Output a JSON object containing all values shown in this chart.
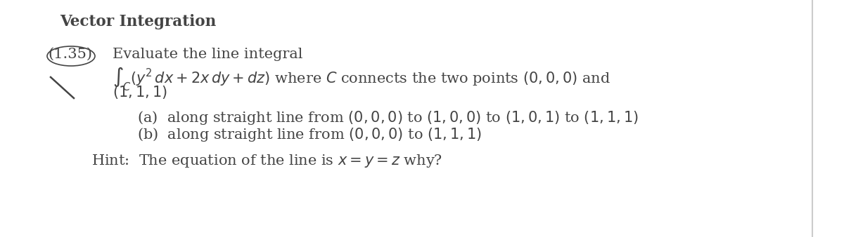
{
  "title": "Vector Integration",
  "background_color": "#ffffff",
  "text_color": "#444444",
  "fig_width": 12.0,
  "fig_height": 3.38,
  "dpi": 100,
  "number_label": "(1.35)",
  "line1": "Evaluate the line integral",
  "line2": "$\\int_C(y^2\\,dx + 2x\\,dy + dz)$ where $C$ connects the two points $(0,0,0)$ and",
  "line3": "$(1,1,1)$",
  "line_a": "(a)  along straight line from $(0,0,0)$ to $(1,0,0)$ to $(1,0,1)$ to $(1,1,1)$",
  "line_b": "(b)  along straight line from $(0,0,0)$ to $(1,1,1)$",
  "hint": "Hint:  The equation of the line is $x = y = z$ why?"
}
